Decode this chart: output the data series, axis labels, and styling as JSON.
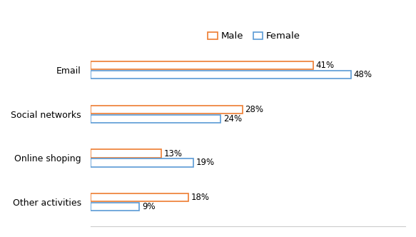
{
  "categories": [
    "Email",
    "Social networks",
    "Online shoping",
    "Other activities"
  ],
  "male_values": [
    41,
    28,
    13,
    18
  ],
  "female_values": [
    48,
    24,
    19,
    9
  ],
  "male_color": "#ED7D31",
  "female_color": "#5B9BD5",
  "bar_facecolor": "#FFFFFF",
  "legend_labels": [
    "Male",
    "Female"
  ],
  "xlim": [
    0,
    58
  ],
  "bar_height": 0.18,
  "bar_gap": 0.03,
  "label_fontsize": 8.5,
  "tick_fontsize": 9,
  "legend_fontsize": 9.5
}
